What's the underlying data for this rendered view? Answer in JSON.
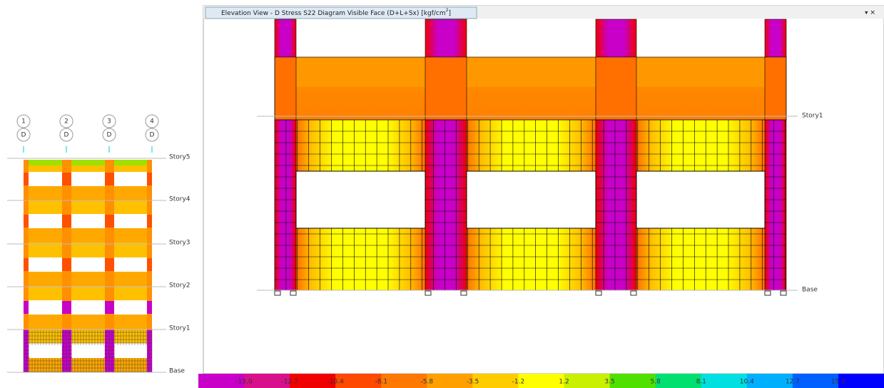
{
  "left_view": {
    "grid_bubbles": [
      {
        "number": "1",
        "line": "D"
      },
      {
        "number": "2",
        "line": "D"
      },
      {
        "number": "3",
        "line": "D"
      },
      {
        "number": "4",
        "line": "D"
      }
    ],
    "stories": [
      "Story5",
      "Story4",
      "Story3",
      "Story2",
      "Story1",
      "Base"
    ]
  },
  "window": {
    "title": "Elevation View - D   Stress S22 Diagram  Visible Face   (D+L+Sx)  [kgf/cm",
    "title_sup": "2",
    "title_end": "]"
  },
  "right_view": {
    "stories": [
      "Story1",
      "Base"
    ]
  },
  "legend": {
    "labels": [
      "-15.0",
      "-12.7",
      "-10.4",
      "-8.1",
      "-5.8",
      "-3.5",
      "-1.2",
      "1.2",
      "3.5",
      "5.8",
      "8.1",
      "10.4",
      "12.7",
      "15.0"
    ],
    "colors": [
      "#c800c8",
      "#d8108c",
      "#f00000",
      "#ff4800",
      "#ff7800",
      "#ffa000",
      "#ffcc00",
      "#ffff00",
      "#c8f000",
      "#50e000",
      "#00e070",
      "#00e0e0",
      "#00b0ff",
      "#0060ff",
      "#0000ff"
    ]
  }
}
